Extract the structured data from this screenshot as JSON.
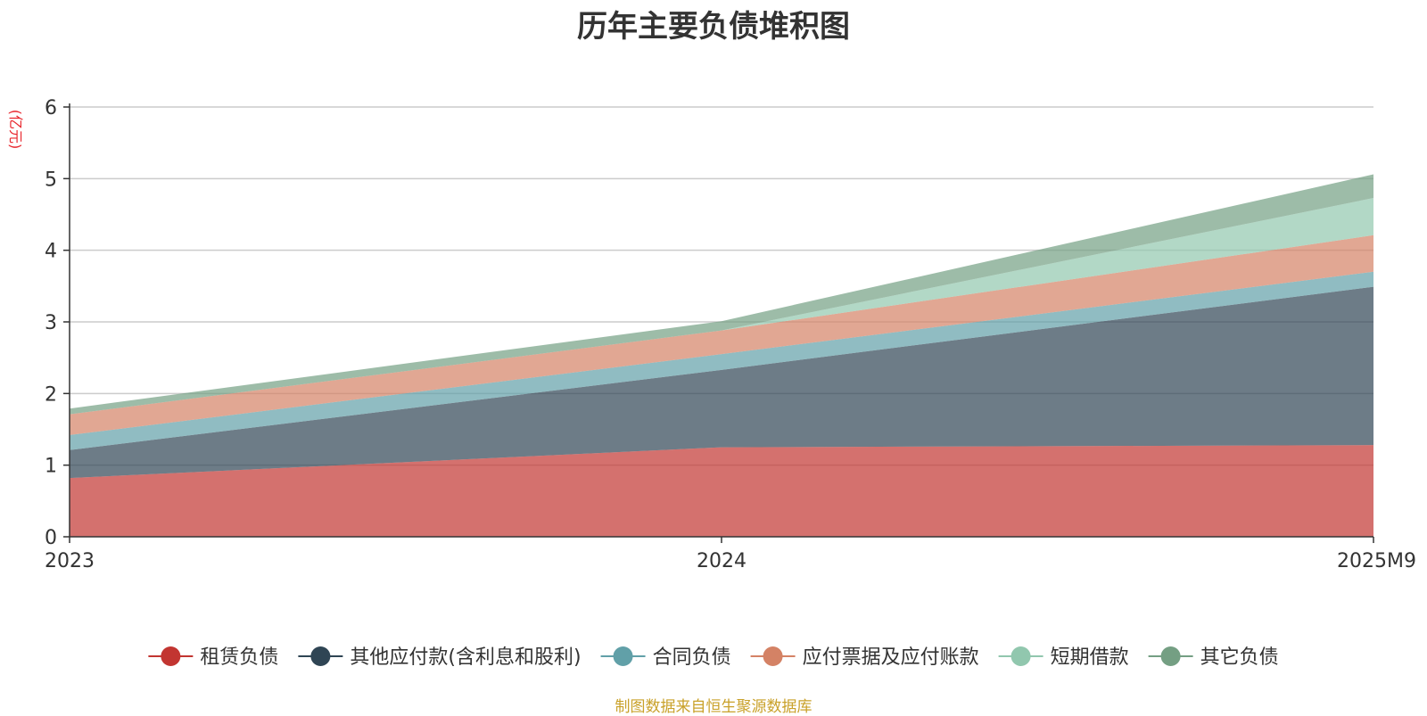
{
  "colors": {
    "series": [
      "#c23531",
      "#2f4554",
      "#61a0a8",
      "#d48265",
      "#91c7ae",
      "#749f83"
    ],
    "grid": "#cccccc",
    "axis": "#333333"
  },
  "chart_data": {
    "type": "area",
    "stacked": true,
    "title": "历年主要负债堆积图",
    "unit_label": "(亿元)",
    "source": "制图数据来自恒生聚源数据库",
    "x": [
      "2023",
      "2024",
      "2025M9"
    ],
    "y_ticks": [
      "0",
      "1",
      "2",
      "3",
      "4",
      "5",
      "6"
    ],
    "ylim": [
      0,
      6
    ],
    "grid": true,
    "legend_position": "bottom",
    "series": [
      {
        "name": "租赁负债",
        "values": [
          0.82,
          1.25,
          1.28
        ]
      },
      {
        "name": "其他应付款(含利息和股利)",
        "values": [
          0.39,
          1.08,
          2.21
        ]
      },
      {
        "name": "合同负债",
        "values": [
          0.21,
          0.22,
          0.21
        ]
      },
      {
        "name": "应付票据及应付账款",
        "values": [
          0.29,
          0.33,
          0.51
        ]
      },
      {
        "name": "短期借款",
        "values": [
          0.0,
          0.0,
          0.52
        ]
      },
      {
        "name": "其它负债",
        "values": [
          0.08,
          0.13,
          0.33
        ]
      }
    ]
  }
}
